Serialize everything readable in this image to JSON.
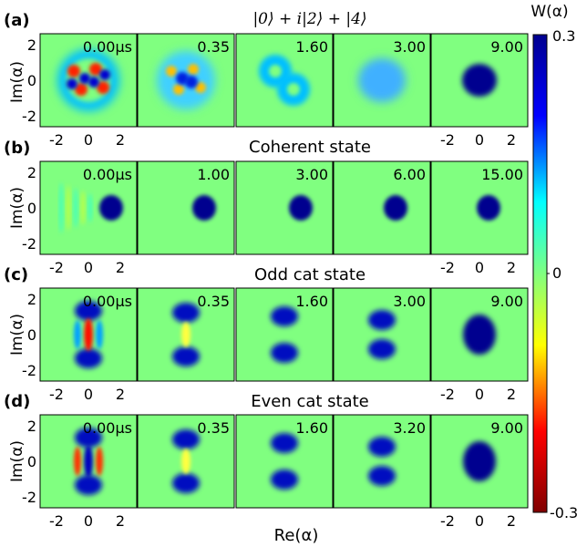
{
  "chart_data": {
    "type": "heatmap",
    "colorbar": {
      "label": "W(α)",
      "ticks": [
        "0.3",
        "0",
        "-0.3"
      ],
      "range": [
        -0.3,
        0.3
      ],
      "colormap": [
        "#800000",
        "#ff0000",
        "#ffff00",
        "#80ff80",
        "#00ffff",
        "#0000ff",
        "#00008f"
      ]
    },
    "xlabel": "Re(α)",
    "ylabel": "Im(α)",
    "axis_ticks": [
      "-2",
      "0",
      "2"
    ],
    "rows": [
      {
        "panel": "(a)",
        "title": "|0⟩ + i|2⟩ + |4⟩",
        "unit": "μs",
        "times": [
          "0.00",
          "0.35",
          "1.60",
          "3.00",
          "9.00"
        ],
        "bottom_ticks_cols": [
          0,
          4
        ]
      },
      {
        "panel": "(b)",
        "title": "Coherent state",
        "unit": "μs",
        "times": [
          "0.00",
          "1.00",
          "3.00",
          "6.00",
          "15.00"
        ],
        "bottom_ticks_cols": [
          0,
          4
        ]
      },
      {
        "panel": "(c)",
        "title": "Odd cat state",
        "unit": "μs",
        "times": [
          "0.00",
          "0.35",
          "1.60",
          "3.00",
          "9.00"
        ],
        "bottom_ticks_cols": [
          0,
          4
        ]
      },
      {
        "panel": "(d)",
        "title": "Even cat state",
        "unit": "μs",
        "times": [
          "0.00",
          "0.35",
          "1.60",
          "3.20",
          "9.00"
        ],
        "bottom_ticks_cols": [
          0,
          4
        ]
      }
    ]
  }
}
